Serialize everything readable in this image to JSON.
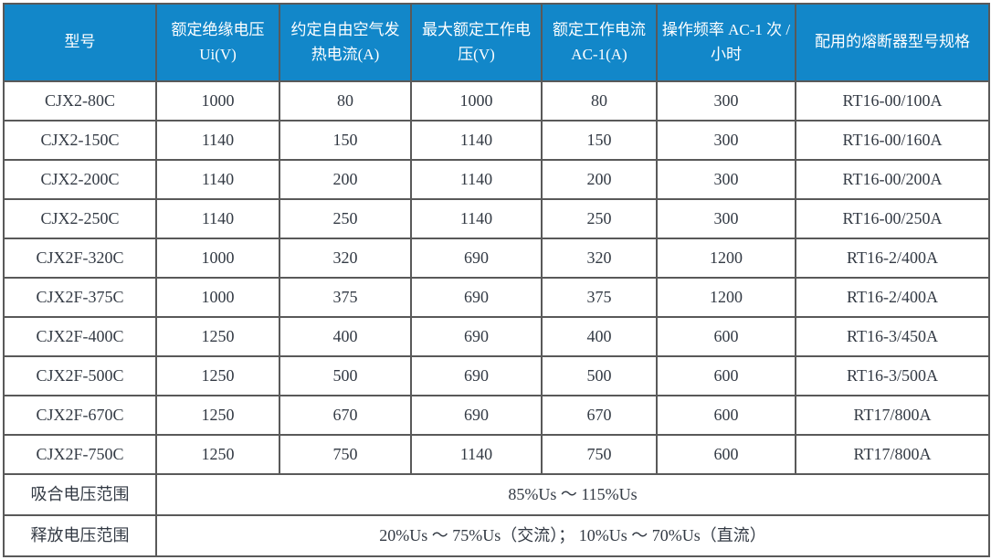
{
  "table": {
    "columns": [
      "型号",
      "额定绝缘电压 Ui(V)",
      "约定自由空气发热电流(A)",
      "最大额定工作电压(V)",
      "额定工作电流 AC-1(A)",
      "操作频率 AC-1 次 / 小时",
      "配用的熔断器型号规格"
    ],
    "rows": [
      [
        "CJX2-80C",
        "1000",
        "80",
        "1000",
        "80",
        "300",
        "RT16-00/100A"
      ],
      [
        "CJX2-150C",
        "1140",
        "150",
        "1140",
        "150",
        "300",
        "RT16-00/160A"
      ],
      [
        "CJX2-200C",
        "1140",
        "200",
        "1140",
        "200",
        "300",
        "RT16-00/200A"
      ],
      [
        "CJX2-250C",
        "1140",
        "250",
        "1140",
        "250",
        "300",
        "RT16-00/250A"
      ],
      [
        "CJX2F-320C",
        "1000",
        "320",
        "690",
        "320",
        "1200",
        "RT16-2/400A"
      ],
      [
        "CJX2F-375C",
        "1000",
        "375",
        "690",
        "375",
        "1200",
        "RT16-2/400A"
      ],
      [
        "CJX2F-400C",
        "1250",
        "400",
        "690",
        "400",
        "600",
        "RT16-3/450A"
      ],
      [
        "CJX2F-500C",
        "1250",
        "500",
        "690",
        "500",
        "600",
        "RT16-3/500A"
      ],
      [
        "CJX2F-670C",
        "1250",
        "670",
        "690",
        "670",
        "600",
        "RT17/800A"
      ],
      [
        "CJX2F-750C",
        "1250",
        "750",
        "1140",
        "750",
        "600",
        "RT17/800A"
      ]
    ],
    "footer_rows": [
      {
        "label": "吸合电压范围",
        "value": "85%Us ～ 115%Us"
      },
      {
        "label": "释放电压范围",
        "value": "20%Us ～ 75%Us（交流）； 10%Us ～ 70%Us（直流）"
      }
    ]
  },
  "colors": {
    "header_bg": "#1287C9",
    "header_text": "#FFFFFF",
    "body_text": "#333A44",
    "border_inner": "#595959",
    "border_outer": "#3B3B3B"
  }
}
